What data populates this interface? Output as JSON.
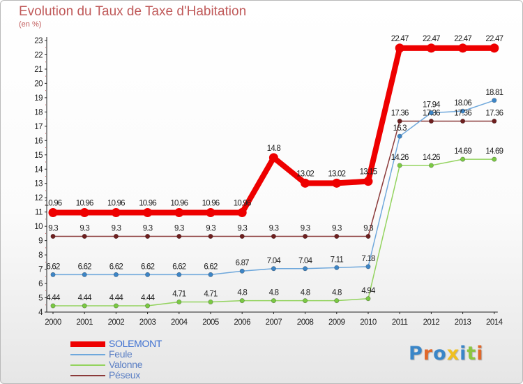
{
  "header": {
    "title": "Evolution du Taux de Taxe d'Habitation",
    "unit": "(en %)"
  },
  "logo": {
    "text": "Proxiti",
    "letter_colors": [
      "#3a86c8",
      "#e0682a",
      "#3a86c8",
      "#f0c020",
      "#3a86c8",
      "#8cc63f",
      "#e0682a"
    ]
  },
  "chart_data": {
    "type": "line",
    "title": "Evolution du Taux de Taxe d'Habitation",
    "ylabel": "(en %)",
    "xlabel": "",
    "x": [
      "2000",
      "2001",
      "2002",
      "2003",
      "2004",
      "2005",
      "2006",
      "2007",
      "2008",
      "2009",
      "2010",
      "2011",
      "2012",
      "2013",
      "2014"
    ],
    "ylim": [
      4,
      23
    ],
    "yticks": [
      4,
      5,
      6,
      7,
      8,
      9,
      10,
      11,
      12,
      13,
      14,
      15,
      16,
      17,
      18,
      19,
      20,
      21,
      22,
      23
    ],
    "grid": false,
    "legend": "bottom-left",
    "series": [
      {
        "name": "SOLEMONT",
        "color": "#ee0000",
        "emphasis": true,
        "values": [
          10.96,
          10.96,
          10.96,
          10.96,
          10.96,
          10.96,
          10.96,
          14.8,
          13.02,
          13.02,
          13.15,
          22.47,
          22.47,
          22.47,
          22.47
        ],
        "labels": [
          "10.96",
          "10.96",
          "10.96",
          "10.96",
          "10.96",
          "10.96",
          "10.96",
          "14.8",
          "13.02",
          "13.02",
          "13.15",
          "22.47",
          "22.47",
          "22.47",
          "22.47"
        ]
      },
      {
        "name": "Feule",
        "color": "#6fa8dc",
        "marker": "#3d85c6",
        "values": [
          6.62,
          6.62,
          6.62,
          6.62,
          6.62,
          6.62,
          6.87,
          7.04,
          7.04,
          7.11,
          7.18,
          16.3,
          17.94,
          18.06,
          18.81
        ],
        "labels": [
          "6.62",
          "6.62",
          "6.62",
          "6.62",
          "6.62",
          "6.62",
          "6.87",
          "7.04",
          "7.04",
          "7.11",
          "7.18",
          "16.3",
          "17.94",
          "18.06",
          "18.81"
        ]
      },
      {
        "name": "Valonne",
        "color": "#93d35e",
        "marker": "#7ac943",
        "values": [
          4.44,
          4.44,
          4.44,
          4.44,
          4.71,
          4.71,
          4.8,
          4.8,
          4.8,
          4.8,
          4.94,
          14.26,
          14.26,
          14.69,
          14.69
        ],
        "labels": [
          "4.44",
          "4.44",
          "4.44",
          "4.44",
          "4.71",
          "4.71",
          "4.8",
          "4.8",
          "4.8",
          "4.8",
          "4.94",
          "14.26",
          "14.26",
          "14.69",
          "14.69"
        ]
      },
      {
        "name": "Péseux",
        "color": "#8b3a3a",
        "marker": "#6e1f1f",
        "values": [
          9.3,
          9.3,
          9.3,
          9.3,
          9.3,
          9.3,
          9.3,
          9.3,
          9.3,
          9.3,
          9.3,
          17.36,
          17.36,
          17.36,
          17.36
        ],
        "labels": [
          "9.3",
          "9.3",
          "9.3",
          "9.3",
          "9.3",
          "9.3",
          "9.3",
          "9.3",
          "9.3",
          "9.3",
          "9.3",
          "17.36",
          "17.36",
          "17.36",
          "17.36"
        ]
      }
    ]
  }
}
